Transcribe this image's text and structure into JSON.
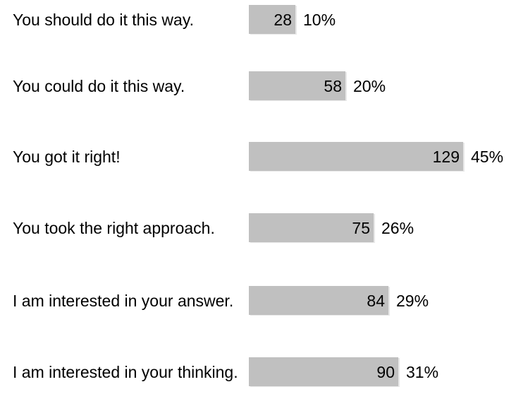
{
  "chart_data": {
    "type": "bar",
    "orientation": "horizontal",
    "categories": [
      "You should do it this way.",
      "You could do it this way.",
      "You got it right!",
      "You took the right approach.",
      "I am interested in your answer.",
      "I am interested in your thinking."
    ],
    "values": [
      28,
      58,
      129,
      75,
      84,
      90
    ],
    "percent_labels": [
      "10%",
      "20%",
      "45%",
      "26%",
      "29%",
      "31%"
    ],
    "xlim": [
      0,
      129
    ],
    "colors": {
      "bar": "#c0c0c0",
      "text": "#000000"
    }
  }
}
